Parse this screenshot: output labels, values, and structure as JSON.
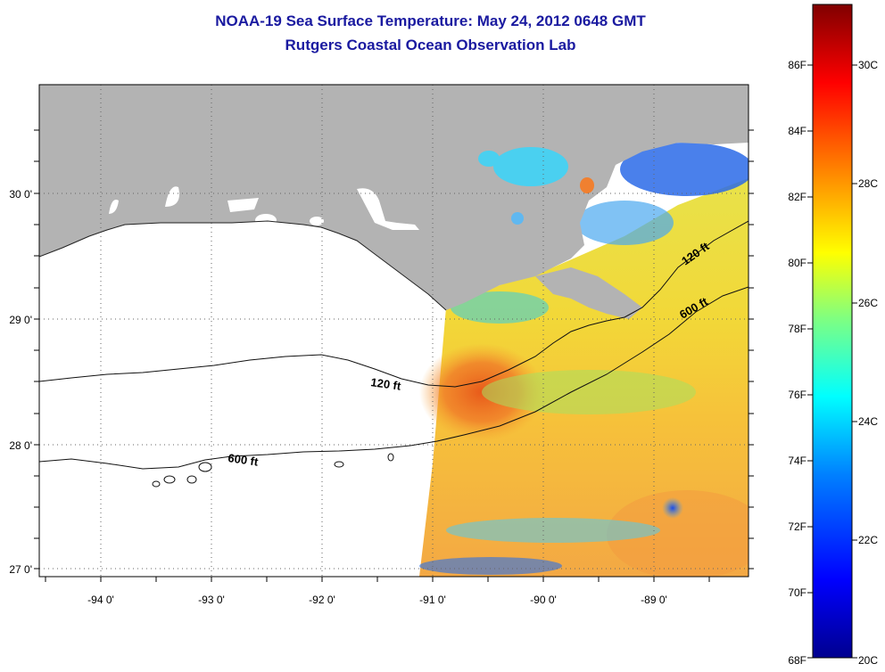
{
  "title": "NOAA-19 Sea Surface Temperature:  May 24, 2012 0648 GMT",
  "subtitle": "Rutgers Coastal Ocean Observation Lab",
  "map": {
    "lat_ticks": [
      "30 0'",
      "29 0'",
      "28 0'",
      "27 0'"
    ],
    "lon_ticks": [
      "-94 0'",
      "-93 0'",
      "-92 0'",
      "-91 0'",
      "-90 0'",
      "-89 0'"
    ],
    "contour_labels": [
      "120 ft",
      "600 ft",
      "120 ft",
      "600 ft"
    ]
  },
  "colorbar": {
    "fahrenheit": [
      "86F",
      "84F",
      "82F",
      "80F",
      "78F",
      "76F",
      "74F",
      "72F",
      "70F",
      "68F"
    ],
    "celsius": [
      "30C",
      "28C",
      "26C",
      "24C",
      "22C",
      "20C"
    ],
    "colors": [
      "#800000",
      "#ff0000",
      "#ff8000",
      "#ffff00",
      "#80ff80",
      "#00ffff",
      "#0080ff",
      "#0000ff",
      "#00008f"
    ]
  }
}
